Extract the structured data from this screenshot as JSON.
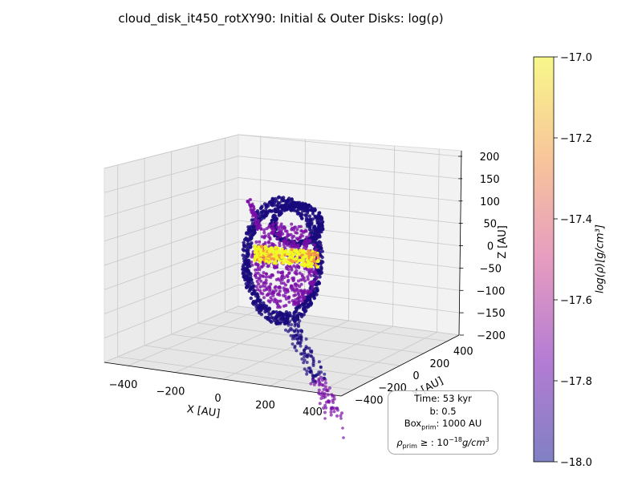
{
  "title": "cloud_disk_it450_rotXY90: Initial & Outer Disks: log(ρ)",
  "chart_data": {
    "type": "scatter",
    "projection": "3d",
    "title": "cloud_disk_it450_rotXY90: Initial & Outer Disks: log(ρ)",
    "xlabel": "X [AU]",
    "ylabel": "Y [AU]",
    "zlabel": "Z [AU]",
    "xlim": [
      -500,
      500
    ],
    "ylim": [
      -500,
      500
    ],
    "zlim": [
      -200,
      200
    ],
    "x_ticks": [
      -400,
      -200,
      0,
      200,
      400
    ],
    "y_ticks": [
      -400,
      -200,
      0,
      200,
      400
    ],
    "z_ticks": [
      -200,
      -150,
      -100,
      -50,
      0,
      50,
      100,
      150,
      200
    ],
    "grid": true,
    "colormap": "plasma",
    "colorbar": {
      "label": "log(ρ)[g/cm³]",
      "range": [
        -18.0,
        -17.0
      ],
      "ticks": [
        "−18.0",
        "−17.8",
        "−17.6",
        "−17.4",
        "−17.2",
        "−17.0"
      ]
    },
    "annotation": {
      "time": "Time: 53 kyr",
      "b": "b: 0.5",
      "box": "Box",
      "box_sub": "prim",
      "box_value": ": 1000 AU",
      "rho": "ρ",
      "rho_sub": "prim",
      "rho_value": " ≥ : 10",
      "rho_exp": "−18",
      "rho_unit": "g/cm",
      "rho_unit_exp": "3"
    },
    "point_colors": {
      "dark": "#1a0a7d",
      "mid": "#7a0fa8",
      "bright": "#f0f921",
      "orange": "#f89540"
    }
  }
}
